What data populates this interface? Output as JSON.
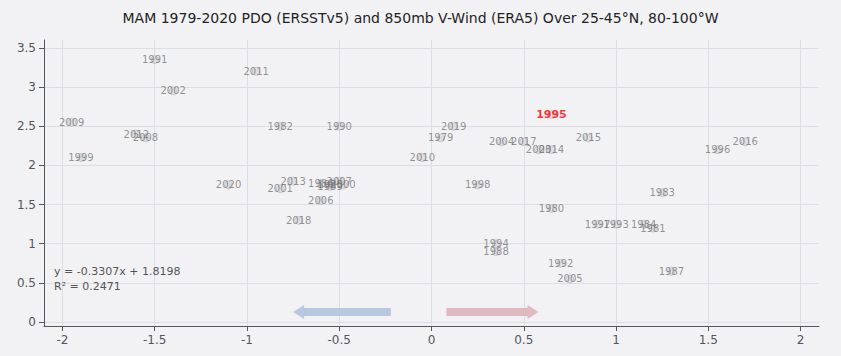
{
  "chart_data": {
    "type": "scatter",
    "title": "MAM 1979-2020 PDO (ERSSTv5) and 850mb V-Wind (ERA5) Over 25-45°N, 80-100°W",
    "annotations": [
      "y = -0.3307x + 1.8198",
      "R² = 0.2471"
    ],
    "labels": [
      "1979",
      "1980",
      "1981",
      "1982",
      "1983",
      "1984",
      "1985",
      "1986",
      "1987",
      "1988",
      "1989",
      "1990",
      "1991",
      "1992",
      "1993",
      "1994",
      "1995",
      "1996",
      "1997",
      "1998",
      "1999",
      "2000",
      "2001",
      "2002",
      "2003",
      "2004",
      "2005",
      "2006",
      "2007",
      "2008",
      "2009",
      "2010",
      "2011",
      "2012",
      "2013",
      "2014",
      "2015",
      "2016",
      "2017",
      "2018",
      "2019",
      "2020"
    ],
    "x": [
      0.05,
      0.65,
      1.2,
      -0.82,
      1.25,
      1.15,
      -0.55,
      -0.6,
      1.3,
      0.35,
      -0.55,
      -0.5,
      -1.5,
      0.7,
      1.0,
      0.35,
      0.65,
      1.55,
      0.9,
      0.25,
      -1.9,
      -0.48,
      -0.82,
      -1.4,
      0.58,
      0.38,
      0.75,
      -0.6,
      -0.5,
      -1.55,
      -1.95,
      -0.05,
      -0.95,
      -1.6,
      -0.75,
      0.65,
      0.85,
      1.7,
      0.5,
      -0.72,
      0.12,
      -1.1
    ],
    "values": [
      2.35,
      1.45,
      1.2,
      2.5,
      1.65,
      1.25,
      1.75,
      1.77,
      0.65,
      0.9,
      1.73,
      2.5,
      3.35,
      0.75,
      1.25,
      1.0,
      2.65,
      2.2,
      1.25,
      1.75,
      2.1,
      1.75,
      1.7,
      2.95,
      2.2,
      2.3,
      0.55,
      1.55,
      1.8,
      2.35,
      2.55,
      2.1,
      3.2,
      2.4,
      1.8,
      2.2,
      2.35,
      2.3,
      2.3,
      1.3,
      2.5,
      1.75
    ],
    "color": "#d8d8e0",
    "label_color": "#777777",
    "highlight": {
      "label": "1995",
      "color": "red"
    },
    "arrows": [
      {
        "x_start": -0.22,
        "x_end": -0.75,
        "y": 0.13,
        "color": "#b8c8e0"
      },
      {
        "x_start": 0.08,
        "x_end": 0.58,
        "y": 0.13,
        "color": "#e0b8c0"
      }
    ],
    "background_color": "#f2f2f5",
    "xlim": [
      -2.1,
      2.1
    ],
    "ylim": [
      -0.05,
      3.6
    ],
    "xticks": [
      -2,
      -1.5,
      -1,
      -0.5,
      0,
      0.5,
      1,
      1.5,
      2
    ],
    "yticks": [
      0,
      0.5,
      1,
      1.5,
      2,
      2.5,
      3,
      3.5
    ],
    "grid": true
  }
}
